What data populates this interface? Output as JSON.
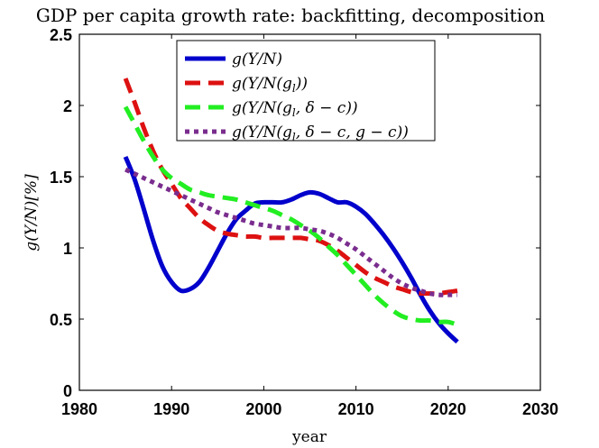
{
  "chart_data": {
    "type": "line",
    "title": "GDP per capita growth rate: backfitting, decomposition",
    "xlabel": "year",
    "ylabel": "g(Y/N)[%]",
    "xlim": [
      1980,
      2030
    ],
    "ylim": [
      0,
      2.5
    ],
    "xticks": [
      1980,
      1990,
      2000,
      2010,
      2020,
      2030
    ],
    "xtick_labels": [
      "1980",
      "1990",
      "2000",
      "2010",
      "2020",
      "2030"
    ],
    "yticks": [
      0,
      0.5,
      1,
      1.5,
      2,
      2.5
    ],
    "ytick_labels": [
      "0",
      "0.5",
      "1",
      "1.5",
      "2",
      "2.5"
    ],
    "grid": false,
    "legend_position": "top-center",
    "series": [
      {
        "name": "g(Y/N)",
        "color": "#0000cc",
        "style": "solid",
        "x": [
          1985,
          1986,
          1987,
          1988,
          1989,
          1990,
          1991,
          1992,
          1993,
          1994,
          1995,
          1996,
          1997,
          1998,
          1999,
          2000,
          2001,
          2002,
          2003,
          2004,
          2005,
          2006,
          2007,
          2008,
          2009,
          2010,
          2011,
          2012,
          2013,
          2014,
          2015,
          2016,
          2017,
          2018,
          2019,
          2020,
          2021
        ],
        "y": [
          1.64,
          1.48,
          1.27,
          1.05,
          0.87,
          0.76,
          0.7,
          0.71,
          0.76,
          0.86,
          0.98,
          1.1,
          1.2,
          1.26,
          1.31,
          1.32,
          1.32,
          1.32,
          1.34,
          1.37,
          1.39,
          1.38,
          1.35,
          1.32,
          1.32,
          1.29,
          1.24,
          1.17,
          1.09,
          1.0,
          0.9,
          0.79,
          0.67,
          0.56,
          0.47,
          0.4,
          0.34
        ]
      },
      {
        "name": "g(Y/N(g_l))",
        "color": "#dd1111",
        "style": "dashed",
        "x": [
          1985,
          1986,
          1987,
          1988,
          1989,
          1990,
          1991,
          1992,
          1993,
          1994,
          1995,
          1996,
          1997,
          1998,
          1999,
          2000,
          2001,
          2002,
          2003,
          2004,
          2005,
          2006,
          2007,
          2008,
          2009,
          2010,
          2011,
          2012,
          2013,
          2014,
          2015,
          2016,
          2017,
          2018,
          2019,
          2020,
          2021
        ],
        "y": [
          2.19,
          2.02,
          1.84,
          1.68,
          1.55,
          1.45,
          1.35,
          1.28,
          1.21,
          1.16,
          1.12,
          1.1,
          1.09,
          1.08,
          1.08,
          1.07,
          1.07,
          1.07,
          1.07,
          1.07,
          1.06,
          1.05,
          1.02,
          0.98,
          0.93,
          0.88,
          0.83,
          0.79,
          0.76,
          0.73,
          0.71,
          0.69,
          0.68,
          0.68,
          0.68,
          0.69,
          0.7
        ]
      },
      {
        "name": "g(Y/N(g_l, δ−c))",
        "color": "#22ee22",
        "style": "dashed",
        "x": [
          1985,
          1986,
          1987,
          1988,
          1989,
          1990,
          1991,
          1992,
          1993,
          1994,
          1995,
          1996,
          1997,
          1998,
          1999,
          2000,
          2001,
          2002,
          2003,
          2004,
          2005,
          2006,
          2007,
          2008,
          2009,
          2010,
          2011,
          2012,
          2013,
          2014,
          2015,
          2016,
          2017,
          2018,
          2019,
          2020,
          2021
        ],
        "y": [
          1.99,
          1.87,
          1.75,
          1.64,
          1.55,
          1.49,
          1.45,
          1.41,
          1.39,
          1.37,
          1.36,
          1.35,
          1.34,
          1.32,
          1.3,
          1.28,
          1.26,
          1.23,
          1.2,
          1.16,
          1.12,
          1.07,
          1.01,
          0.95,
          0.88,
          0.81,
          0.74,
          0.67,
          0.61,
          0.56,
          0.52,
          0.5,
          0.49,
          0.49,
          0.48,
          0.48,
          0.46
        ]
      },
      {
        "name": "g(Y/N(g_l, δ−c, g−c))",
        "color": "#7a2d8e",
        "style": "dotted",
        "x": [
          1985,
          1986,
          1987,
          1988,
          1989,
          1990,
          1991,
          1992,
          1993,
          1994,
          1995,
          1996,
          1997,
          1998,
          1999,
          2000,
          2001,
          2002,
          2003,
          2004,
          2005,
          2006,
          2007,
          2008,
          2009,
          2010,
          2011,
          2012,
          2013,
          2014,
          2015,
          2016,
          2017,
          2018,
          2019,
          2020,
          2021
        ],
        "y": [
          1.55,
          1.52,
          1.49,
          1.46,
          1.43,
          1.4,
          1.37,
          1.34,
          1.31,
          1.28,
          1.25,
          1.23,
          1.21,
          1.19,
          1.17,
          1.16,
          1.15,
          1.14,
          1.14,
          1.14,
          1.13,
          1.12,
          1.1,
          1.07,
          1.03,
          0.99,
          0.94,
          0.89,
          0.84,
          0.79,
          0.75,
          0.72,
          0.7,
          0.68,
          0.67,
          0.67,
          0.67
        ]
      }
    ]
  },
  "legend": {
    "entries": [
      {
        "label_main": "g(Y/N)",
        "sub": "",
        "label_rest": ""
      },
      {
        "label_main": "g(Y/N(g",
        "sub": "l",
        "label_rest": "))"
      },
      {
        "label_main": "g(Y/N(g",
        "sub": "l",
        "label_rest": ", δ − c))"
      },
      {
        "label_main": "g(Y/N(g",
        "sub": "l",
        "label_rest": ", δ − c, g − c))"
      }
    ]
  },
  "ylabel_display": "g(Y/N)[%]"
}
